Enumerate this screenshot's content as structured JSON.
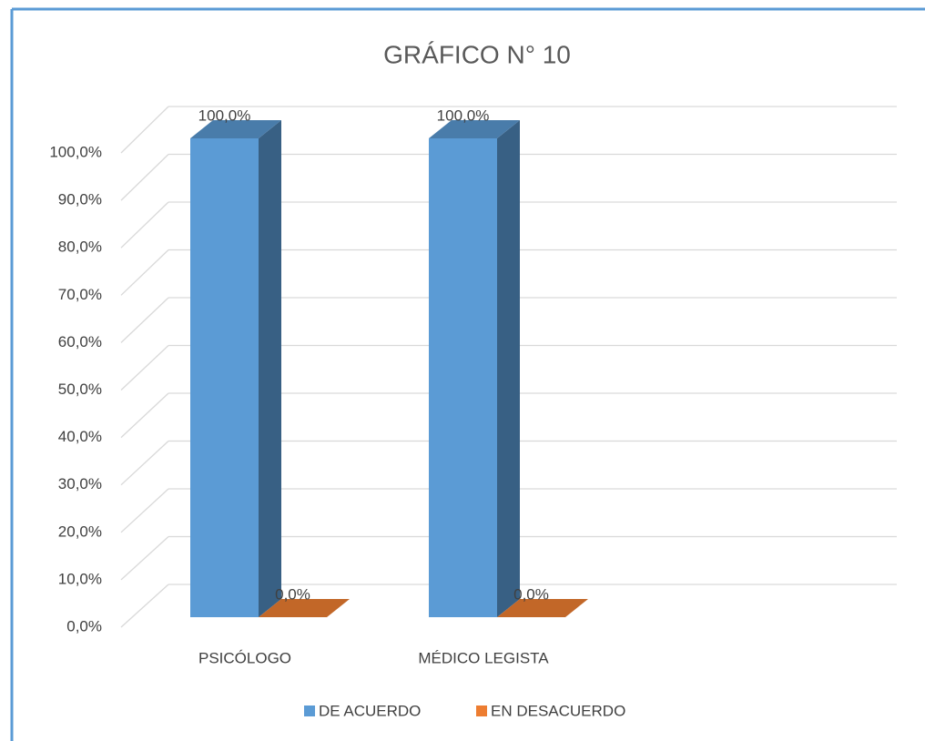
{
  "chart_data": {
    "type": "bar3d",
    "title": "GRÁFICO N° 10",
    "categories": [
      "PSICÓLOGO",
      "MÉDICO LEGISTA"
    ],
    "series": [
      {
        "name": "DE ACUERDO",
        "color": "#5b9bd5",
        "values": [
          100,
          100
        ],
        "value_labels": [
          "100,0%",
          "100,0%"
        ]
      },
      {
        "name": "EN DESACUERDO",
        "color": "#ed7d31",
        "values": [
          0,
          0
        ],
        "value_labels": [
          "0,0%",
          "0,0%"
        ]
      }
    ],
    "ylim": [
      0,
      100
    ],
    "yticks": [
      {
        "value": 0,
        "label": "0,0%"
      },
      {
        "value": 10,
        "label": "10,0%"
      },
      {
        "value": 20,
        "label": "20,0%"
      },
      {
        "value": 30,
        "label": "30,0%"
      },
      {
        "value": 40,
        "label": "40,0%"
      },
      {
        "value": 50,
        "label": "50,0%"
      },
      {
        "value": 60,
        "label": "60,0%"
      },
      {
        "value": 70,
        "label": "70,0%"
      },
      {
        "value": 80,
        "label": "80,0%"
      },
      {
        "value": 90,
        "label": "90,0%"
      },
      {
        "value": 100,
        "label": "100,0%"
      }
    ],
    "grid": true,
    "legend": "bottom"
  }
}
